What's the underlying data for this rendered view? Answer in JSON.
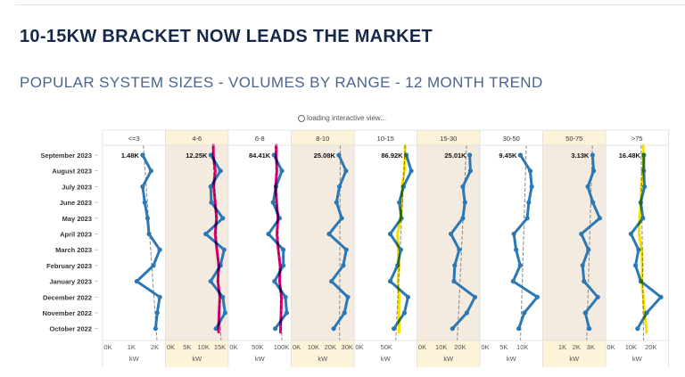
{
  "header": {
    "title": "10-15KW BRACKET NOW LEADS THE MARKET",
    "subtitle": "POPULAR SYSTEM SIZES - VOLUMES BY RANGE - 12 MONTH TREND",
    "loading_text": "loading interactive view..."
  },
  "chart_data": {
    "type": "line",
    "orientation": "horizontal small multiples",
    "rows": [
      "September 2023",
      "August 2023",
      "July 2023",
      "June 2023",
      "May 2023",
      "April 2023",
      "March 2023",
      "February 2023",
      "January 2023",
      "December 2022",
      "November 2022",
      "October 2022"
    ],
    "xlabel": "kW",
    "unit_note": "values in thousands (K)",
    "line_color": "#2b78b4",
    "trend_line": "dashed grey",
    "panels": [
      {
        "name": "<=3",
        "label": "1.48K",
        "xlim": [
          0,
          2.3
        ],
        "ticks": [
          {
            "v": 0,
            "t": "0K"
          },
          {
            "v": 1,
            "t": "1K"
          },
          {
            "v": 2,
            "t": "2K"
          }
        ],
        "shaded": false,
        "highlight": null,
        "values": [
          1.48,
          1.84,
          1.48,
          1.57,
          1.69,
          1.75,
          2.21,
          1.94,
          1.23,
          2.21,
          2.1,
          2.03
        ]
      },
      {
        "name": "4-6",
        "label": "12.25K",
        "xlim": [
          0,
          16.5
        ],
        "ticks": [
          {
            "v": 0,
            "t": "0K"
          },
          {
            "v": 5,
            "t": "5K"
          },
          {
            "v": 10,
            "t": "10K"
          },
          {
            "v": 15,
            "t": "15K"
          }
        ],
        "shaded": true,
        "highlight": "#e6007e",
        "values": [
          12.25,
          15.2,
          12.2,
          12.4,
          15.9,
          10.7,
          16.3,
          15.2,
          12.2,
          15.9,
          16.6,
          13.8
        ]
      },
      {
        "name": "6-8",
        "label": "84.41K",
        "xlim": [
          0,
          113
        ],
        "ticks": [
          {
            "v": 0,
            "t": "0K"
          },
          {
            "v": 50,
            "t": "50K"
          },
          {
            "v": 100,
            "t": "100K"
          }
        ],
        "shaded": false,
        "highlight": "#e6007e",
        "values": [
          84.41,
          101,
          88.7,
          82.5,
          96,
          73,
          104,
          104,
          85.5,
          108.5,
          111,
          87
        ]
      },
      {
        "name": "8-10",
        "label": "25.08K",
        "xlim": [
          0,
          32
        ],
        "ticks": [
          {
            "v": 0,
            "t": "0K"
          },
          {
            "v": 10,
            "t": "10K"
          },
          {
            "v": 20,
            "t": "20K"
          },
          {
            "v": 30,
            "t": "30K"
          }
        ],
        "shaded": true,
        "highlight": null,
        "values": [
          25.08,
          29.3,
          25.4,
          23.7,
          26.8,
          19.3,
          29.5,
          27.7,
          20.7,
          30.4,
          28.4,
          22
        ]
      },
      {
        "name": "10-15",
        "label": "86.92K",
        "xlim": [
          0,
          100
        ],
        "ticks": [
          {
            "v": 0,
            "t": "0K"
          },
          {
            "v": 50,
            "t": "50K"
          }
        ],
        "shaded": false,
        "highlight": "#f5e000",
        "values": [
          86.92,
          96,
          81.7,
          73.8,
          77.8,
          57,
          76.7,
          70.5,
          57,
          90,
          83.3,
          63.8
        ]
      },
      {
        "name": "15-30",
        "label": "25.01K",
        "xlim": [
          0,
          28.5
        ],
        "ticks": [
          {
            "v": 0,
            "t": "0K"
          },
          {
            "v": 10,
            "t": "10K"
          },
          {
            "v": 20,
            "t": "20K"
          }
        ],
        "shaded": true,
        "highlight": null,
        "values": [
          25.01,
          25.4,
          21.4,
          22.5,
          21.4,
          15.1,
          19.5,
          17.1,
          16.7,
          27.8,
          23.5,
          15.9
        ]
      },
      {
        "name": "30-50",
        "label": "9.45K",
        "xlim": [
          0,
          14.5
        ],
        "ticks": [
          {
            "v": 0,
            "t": "0K"
          },
          {
            "v": 5,
            "t": "5K"
          },
          {
            "v": 10,
            "t": "10K"
          }
        ],
        "shaded": false,
        "highlight": null,
        "values": [
          9.45,
          12.1,
          12.5,
          11.7,
          11.3,
          7.7,
          8.3,
          9.4,
          7.5,
          14,
          10.5,
          9
        ]
      },
      {
        "name": "50-75",
        "label": "3.13K",
        "xlim": [
          0,
          3.8
        ],
        "ticks": [
          {
            "v": 1,
            "t": "1K"
          },
          {
            "v": 2,
            "t": "2K"
          },
          {
            "v": 3,
            "t": "3K"
          }
        ],
        "shaded": true,
        "highlight": null,
        "values": [
          3.13,
          3.21,
          2.8,
          3.15,
          3.64,
          2.34,
          2.84,
          2.43,
          2.53,
          3.5,
          2.62,
          2.9
        ]
      },
      {
        "name": ">75",
        "label": "16.48K",
        "xlim": [
          0,
          27
        ],
        "ticks": [
          {
            "v": 0,
            "t": "0K"
          },
          {
            "v": 10,
            "t": "10K"
          },
          {
            "v": 20,
            "t": "20K"
          }
        ],
        "shaded": false,
        "highlight": "#f5e000",
        "values": [
          16.48,
          16.4,
          16.8,
          14.9,
          16,
          10,
          13.8,
          12.3,
          14.9,
          25,
          17.9,
          13.3
        ]
      }
    ]
  }
}
